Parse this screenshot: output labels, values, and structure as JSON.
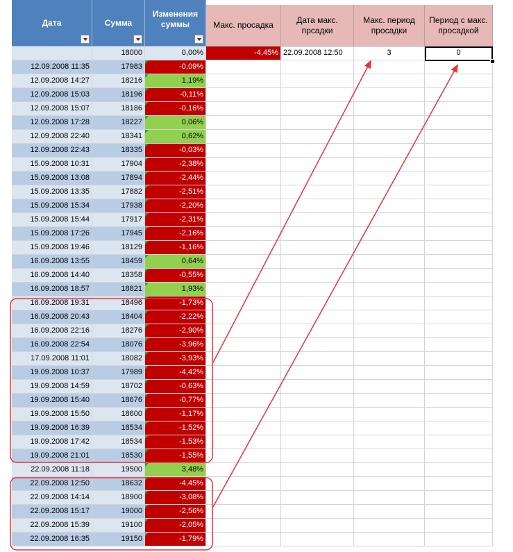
{
  "headers": {
    "date": "Дата",
    "sum": "Сумма",
    "change": "Изменения суммы",
    "max_dd": "Макс. просадка",
    "max_dd_date": "Дата макс. прсадки",
    "max_dd_period": "Макс. период просадки",
    "period_with_max_dd": "Период с макс. просадкой"
  },
  "summary": {
    "max_dd": "-4,45%",
    "max_dd_date": "22.09.2008 12:50",
    "max_dd_period": "3",
    "period_with_max_dd": "0"
  },
  "rows": [
    {
      "date": "",
      "sum": "18000",
      "change": "0,00%",
      "status": "neutral"
    },
    {
      "date": "12.09.2008 11:35",
      "sum": "17983",
      "change": "-0,09%",
      "status": "red"
    },
    {
      "date": "12.09.2008 14:27",
      "sum": "18216",
      "change": "1,19%",
      "status": "green"
    },
    {
      "date": "12.09.2008 15:03",
      "sum": "18196",
      "change": "-0,11%",
      "status": "red"
    },
    {
      "date": "12.09.2008 15:07",
      "sum": "18186",
      "change": "-0,16%",
      "status": "red"
    },
    {
      "date": "12.09.2008 17:28",
      "sum": "18227",
      "change": "0,06%",
      "status": "green"
    },
    {
      "date": "12.09.2008 22:40",
      "sum": "18341",
      "change": "0,62%",
      "status": "green"
    },
    {
      "date": "12.09.2008 22:43",
      "sum": "18335",
      "change": "-0,03%",
      "status": "red"
    },
    {
      "date": "15.09.2008 10:31",
      "sum": "17904",
      "change": "-2,38%",
      "status": "red"
    },
    {
      "date": "15.09.2008 13:08",
      "sum": "17894",
      "change": "-2,44%",
      "status": "red"
    },
    {
      "date": "15.09.2008 13:35",
      "sum": "17882",
      "change": "-2,51%",
      "status": "red"
    },
    {
      "date": "15.09.2008 15:34",
      "sum": "17938",
      "change": "-2,20%",
      "status": "red"
    },
    {
      "date": "15.09.2008 15:44",
      "sum": "17917",
      "change": "-2,31%",
      "status": "red"
    },
    {
      "date": "15.09.2008 17:26",
      "sum": "17945",
      "change": "-2,16%",
      "status": "red"
    },
    {
      "date": "15.09.2008 19:46",
      "sum": "18129",
      "change": "-1,16%",
      "status": "red"
    },
    {
      "date": "16.09.2008 13:55",
      "sum": "18459",
      "change": "0,64%",
      "status": "green"
    },
    {
      "date": "16.09.2008 14:40",
      "sum": "18358",
      "change": "-0,55%",
      "status": "red"
    },
    {
      "date": "16.09.2008 18:57",
      "sum": "18821",
      "change": "1,93%",
      "status": "green"
    },
    {
      "date": "16.09.2008 19:31",
      "sum": "18496",
      "change": "-1,73%",
      "status": "red"
    },
    {
      "date": "16.09.2008 20:43",
      "sum": "18404",
      "change": "-2,22%",
      "status": "red"
    },
    {
      "date": "16.09.2008 22:16",
      "sum": "18276",
      "change": "-2,90%",
      "status": "red"
    },
    {
      "date": "16.09.2008 22:54",
      "sum": "18076",
      "change": "-3,96%",
      "status": "red"
    },
    {
      "date": "17.09.2008 11:01",
      "sum": "18082",
      "change": "-3,93%",
      "status": "red"
    },
    {
      "date": "19.09.2008 10:37",
      "sum": "17989",
      "change": "-4,42%",
      "status": "red"
    },
    {
      "date": "19.09.2008 14:59",
      "sum": "18702",
      "change": "-0,63%",
      "status": "red"
    },
    {
      "date": "19.09.2008 15:40",
      "sum": "18676",
      "change": "-0,77%",
      "status": "red"
    },
    {
      "date": "19.09.2008 15:50",
      "sum": "18600",
      "change": "-1,17%",
      "status": "red"
    },
    {
      "date": "19.09.2008 16:39",
      "sum": "18534",
      "change": "-1,52%",
      "status": "red"
    },
    {
      "date": "19.09.2008 17:42",
      "sum": "18534",
      "change": "-1,53%",
      "status": "red"
    },
    {
      "date": "19.09.2008 21:01",
      "sum": "18530",
      "change": "-1,55%",
      "status": "red"
    },
    {
      "date": "22.09.2008 11:18",
      "sum": "19500",
      "change": "3,48%",
      "status": "green"
    },
    {
      "date": "22.09.2008 12:50",
      "sum": "18632",
      "change": "-4,45%",
      "status": "red"
    },
    {
      "date": "22.09.2008 14:14",
      "sum": "18900",
      "change": "-3,08%",
      "status": "red"
    },
    {
      "date": "22.09.2008 15:17",
      "sum": "19000",
      "change": "-2,56%",
      "status": "red"
    },
    {
      "date": "22.09.2008 15:39",
      "sum": "19100",
      "change": "-2,05%",
      "status": "red"
    },
    {
      "date": "22.09.2008 16:35",
      "sum": "19150",
      "change": "-1,79%",
      "status": "red"
    }
  ],
  "colors": {
    "header_blue": "#4f81bd",
    "header_pink": "#e6b8b7",
    "negative": "#c00000",
    "positive": "#92d050",
    "annotation": "#e8323a"
  },
  "annotations": [
    "highlight-box-period-1",
    "highlight-box-period-2",
    "arrow-to-max-dd-period",
    "arrow-to-period-with-max-dd"
  ]
}
